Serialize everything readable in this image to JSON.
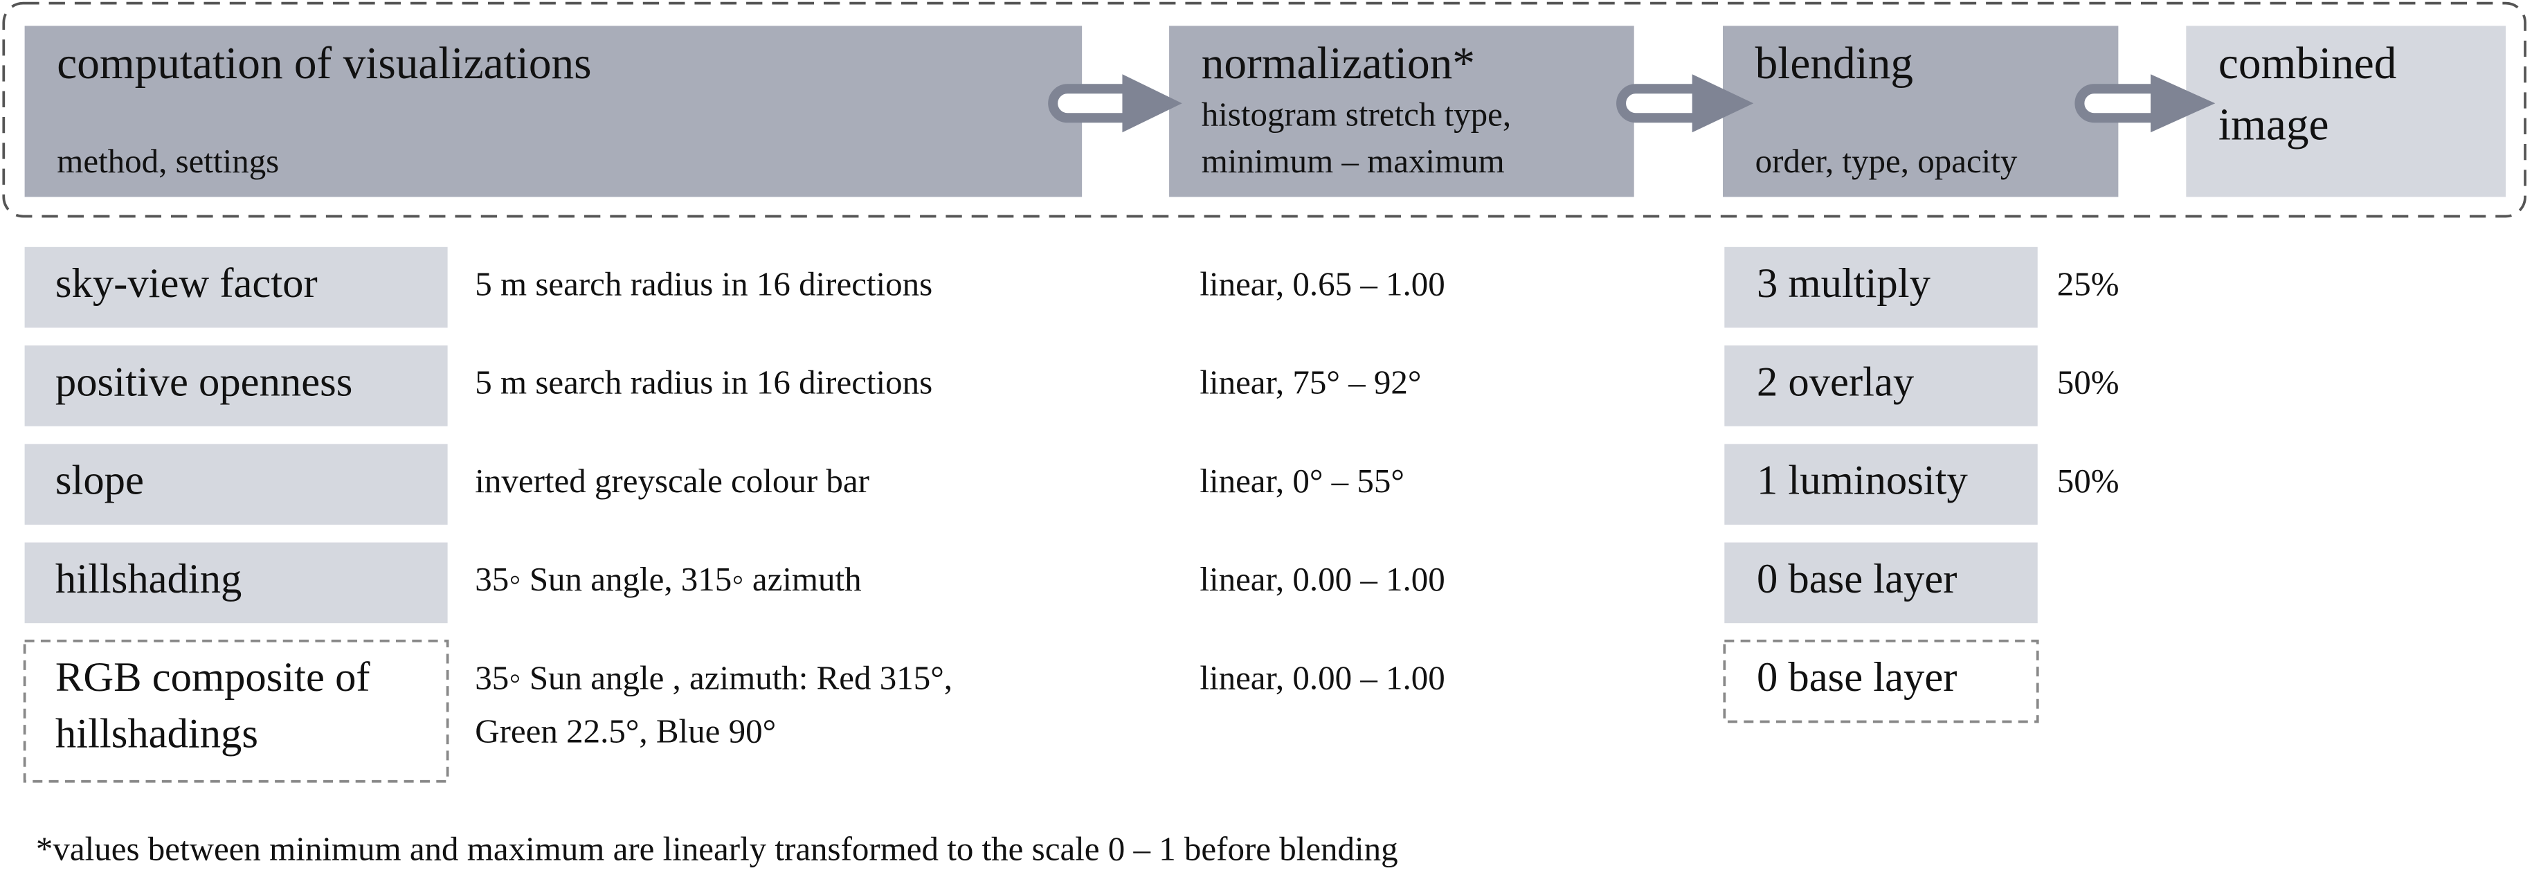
{
  "pipeline": [
    {
      "title": [
        "computation of visualizations"
      ],
      "details": [
        "method, settings"
      ]
    },
    {
      "title": [
        "normalization*"
      ],
      "details": [
        "histogram stretch type,",
        "minimum – maximum"
      ]
    },
    {
      "title": [
        "blending"
      ],
      "details": [
        "order, type, opacity"
      ]
    },
    {
      "title": [
        "combined",
        "image"
      ]
    }
  ],
  "rows": [
    {
      "visualization": [
        "sky-view factor"
      ],
      "settings": [
        "5 m search radius in 16 directions"
      ],
      "normalization": "linear, 0.65 – 1.00",
      "blending": "3 multiply",
      "opacity": "25%"
    },
    {
      "visualization": [
        "positive openness"
      ],
      "settings": [
        "5 m search radius in 16 directions"
      ],
      "normalization": "linear, 75° – 92°",
      "blending": "2 overlay",
      "opacity": "50%"
    },
    {
      "visualization": [
        "slope"
      ],
      "settings": [
        "inverted greyscale colour bar"
      ],
      "normalization": "linear, 0° – 55°",
      "blending": "1 luminosity",
      "opacity": "50%"
    },
    {
      "visualization": [
        "hillshading"
      ],
      "settings": [
        "35◦ Sun angle, 315◦ azimuth"
      ],
      "normalization": "linear, 0.00 – 1.00",
      "blending": "0 base layer"
    },
    {
      "visualization": [
        "RGB composite of",
        "hillshadings"
      ],
      "settings": [
        "35◦ Sun angle , azimuth: Red 315°,",
        "Green 22.5°, Blue 90°"
      ],
      "normalization": "linear, 0.00 – 1.00",
      "blending": "0 base layer"
    }
  ],
  "footnote": "*values between minimum and maximum are linearly transformed to the scale 0 – 1 before blending"
}
